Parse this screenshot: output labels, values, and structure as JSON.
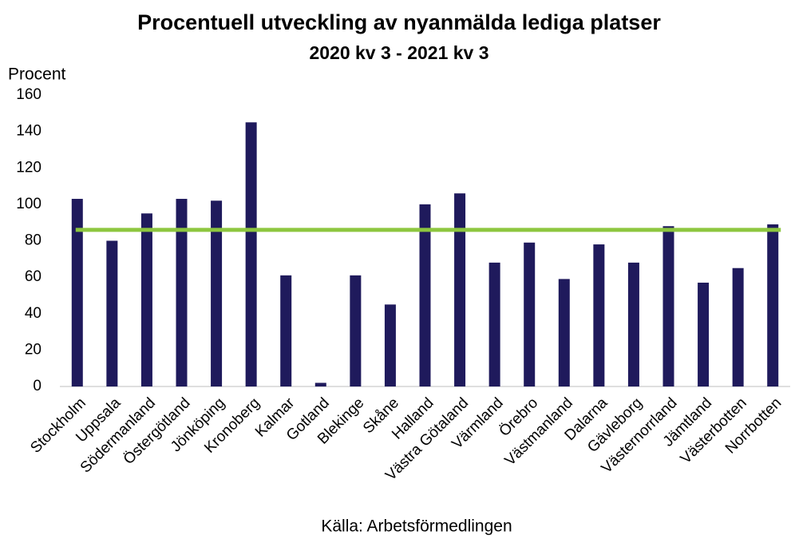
{
  "chart_data": {
    "type": "bar",
    "title": "Procentuell utveckling av nyanmälda lediga platser",
    "subtitle": "2020 kv 3 - 2021 kv 3",
    "y_axis_label": "Procent",
    "source": "Källa: Arbetsförmedlingen",
    "categories": [
      "Stockholm",
      "Uppsala",
      "Södermanland",
      "Östergötland",
      "Jönköping",
      "Kronoberg",
      "Kalmar",
      "Gotland",
      "Blekinge",
      "Skåne",
      "Halland",
      "Västra Götaland",
      "Värmland",
      "Örebro",
      "Västmanland",
      "Dalarna",
      "Gävleborg",
      "Västernorrland",
      "Jämtland",
      "Västerbotten",
      "Norrbotten"
    ],
    "values": [
      103,
      80,
      95,
      103,
      102,
      145,
      61,
      2,
      61,
      45,
      100,
      106,
      68,
      79,
      59,
      78,
      68,
      88,
      57,
      65,
      89
    ],
    "color": "#1f1a5c",
    "reference_line": {
      "value": 86,
      "color": "#8dc63f"
    },
    "ylim": [
      0,
      160
    ],
    "yticks": [
      0,
      20,
      40,
      60,
      80,
      100,
      120,
      140,
      160
    ],
    "grid": false
  }
}
